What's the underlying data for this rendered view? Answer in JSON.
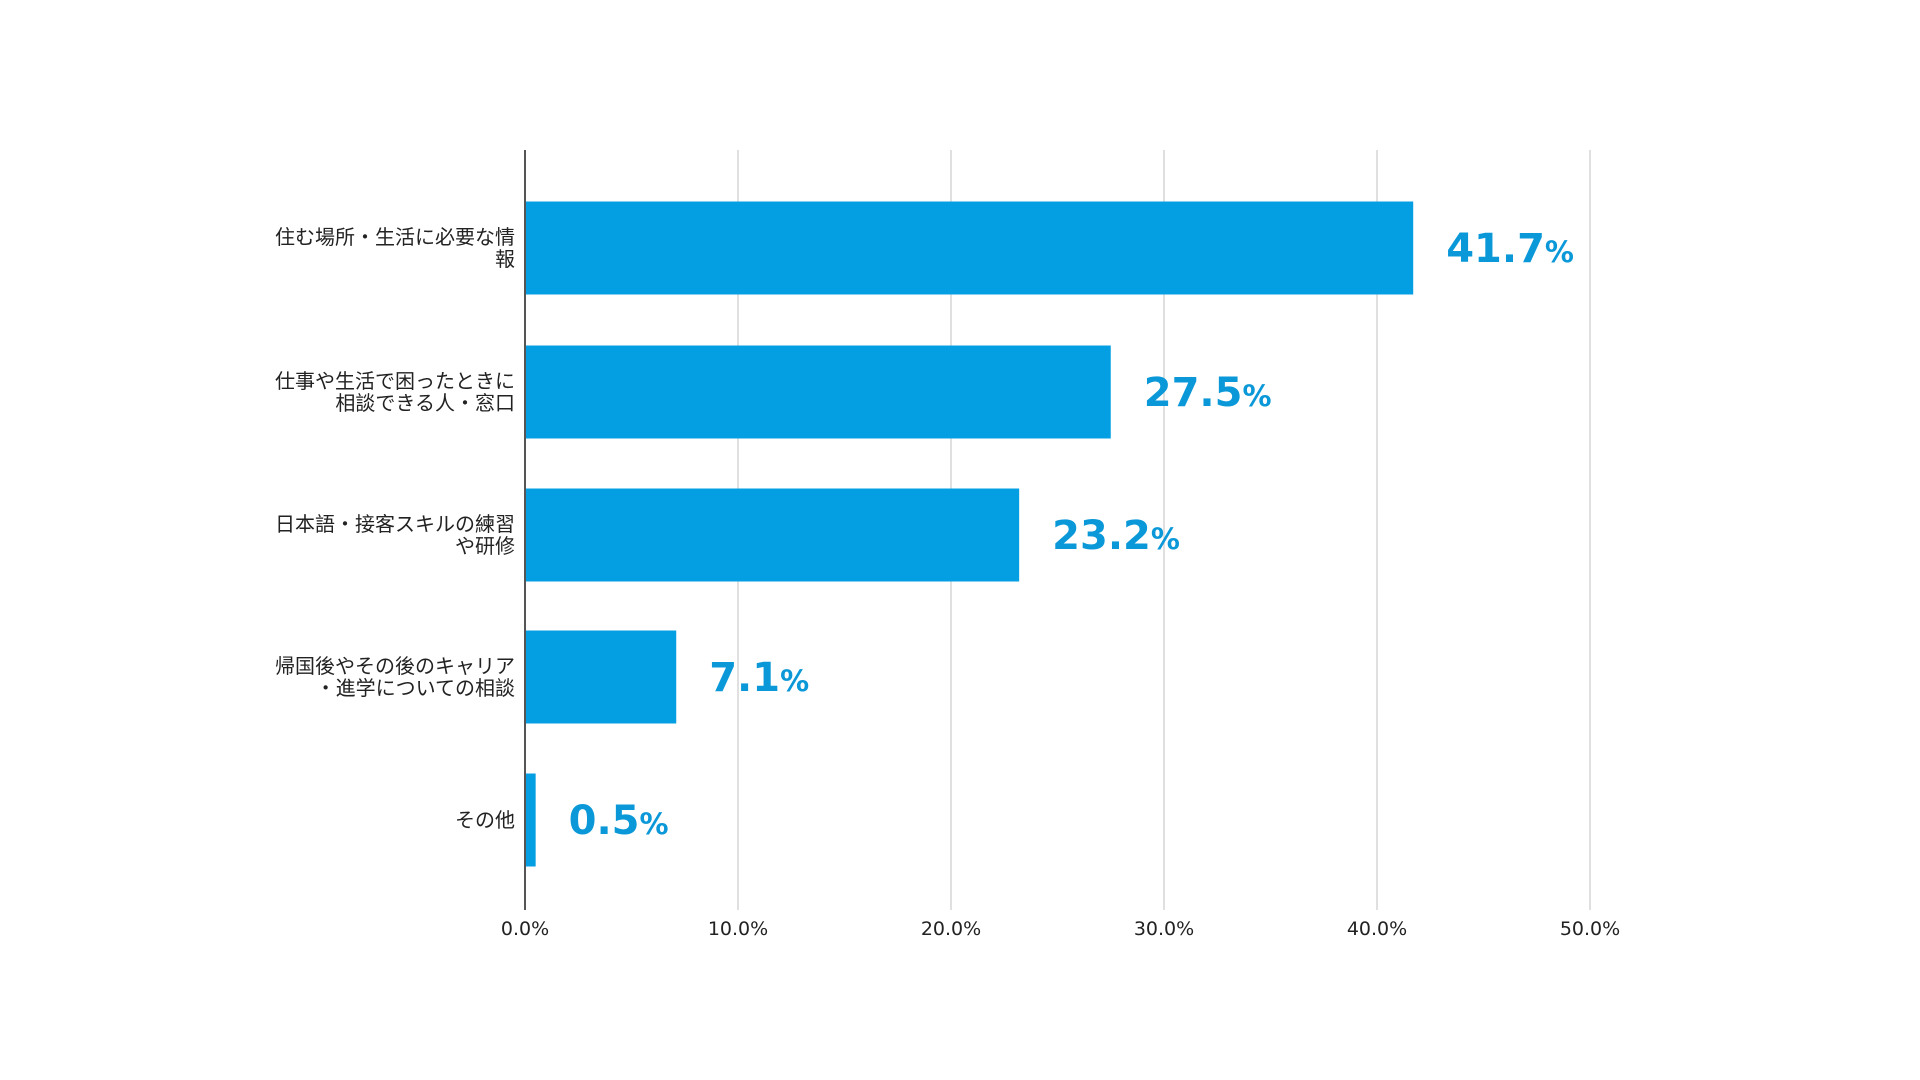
{
  "colors": {
    "bar": "#049fe3",
    "value_label": "#0b98d8",
    "grid": "#d6d6d6",
    "axis": "#555555",
    "text": "#222222"
  },
  "chart_data": {
    "type": "bar",
    "orientation": "horizontal",
    "title": "",
    "xlabel": "",
    "ylabel": "",
    "grid": true,
    "legend": "none",
    "xlim": [
      0,
      50
    ],
    "x_ticks": [
      0,
      10,
      20,
      30,
      40,
      50
    ],
    "x_tick_labels": [
      "0.0%",
      "10.0%",
      "20.0%",
      "30.0%",
      "40.0%",
      "50.0%"
    ],
    "categories": [
      [
        "住む場所・生活に必要な情",
        "報"
      ],
      [
        "仕事や生活で困ったときに",
        "相談できる人・窓口"
      ],
      [
        "日本語・接客スキルの練習",
        "や研修"
      ],
      [
        "帰国後やその後のキャリア",
        "・進学についての相談"
      ],
      [
        "その他"
      ]
    ],
    "values": [
      41.7,
      27.5,
      23.2,
      7.1,
      0.5
    ],
    "value_labels": [
      "41.7",
      "27.5",
      "23.2",
      "7.1",
      "0.5"
    ],
    "value_suffix": "%"
  }
}
